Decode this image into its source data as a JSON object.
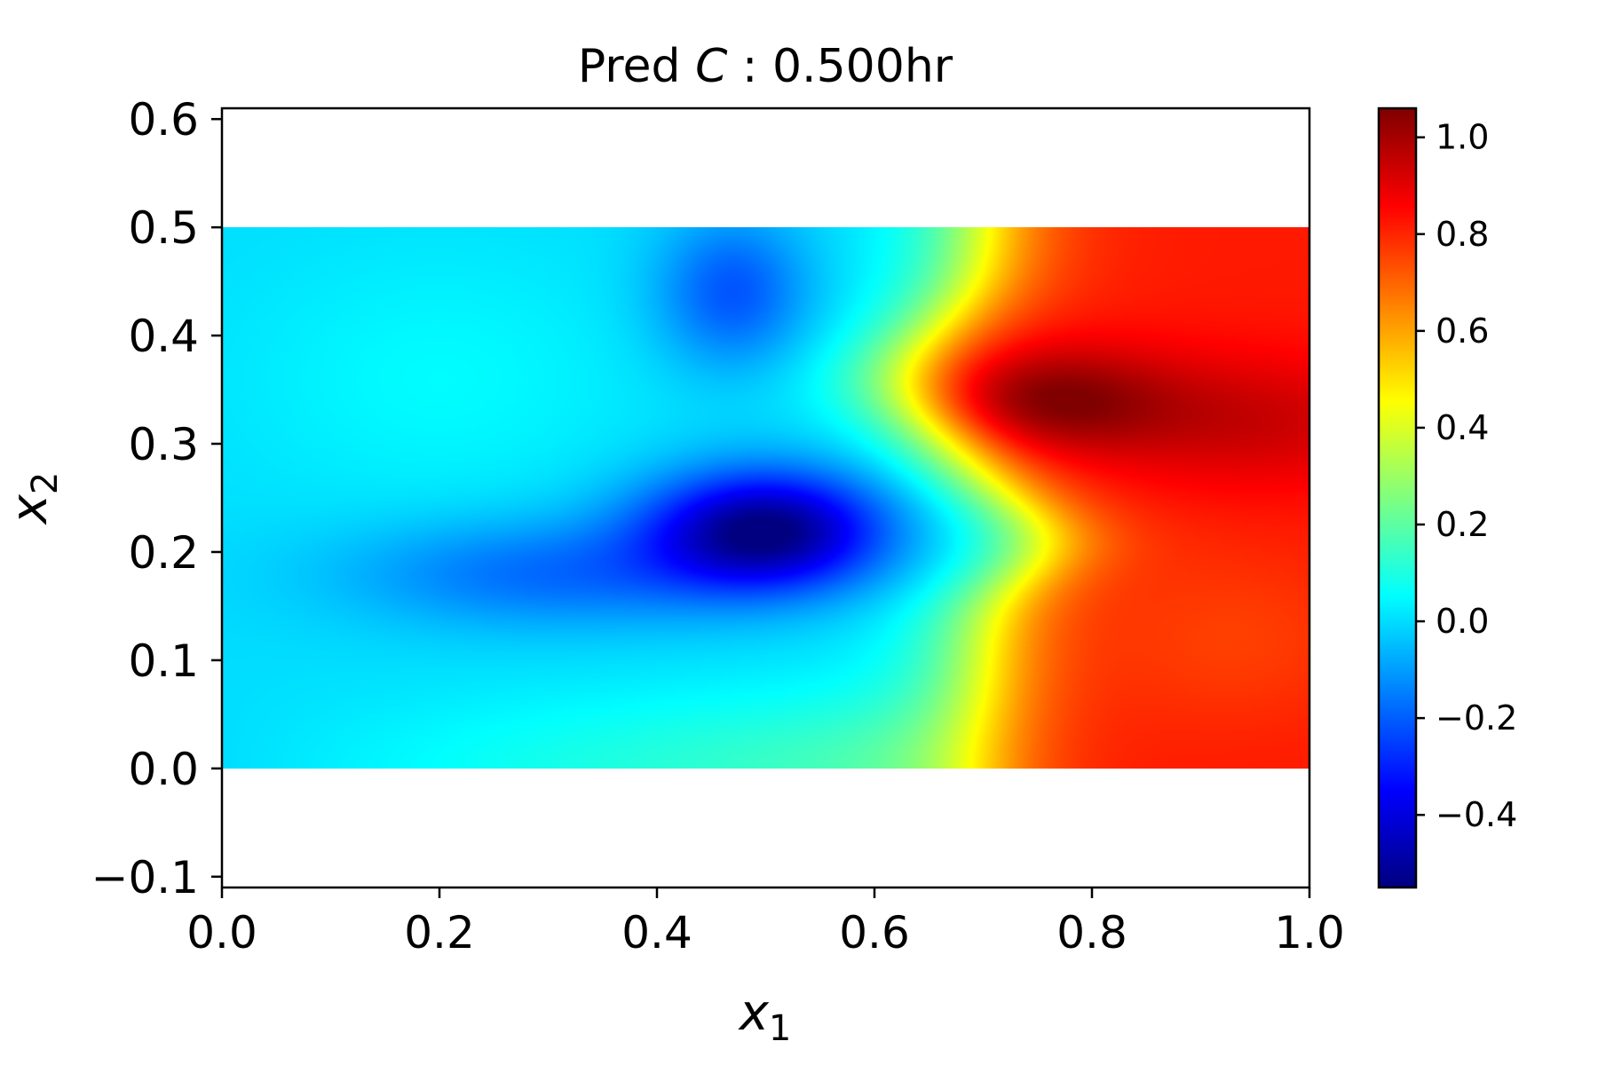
{
  "chart_data": {
    "type": "heatmap",
    "title": "Pred C :  0.500hr",
    "title_parts": {
      "prefix": "Pred ",
      "symbol": "C",
      "suffix": " :  0.500hr"
    },
    "xlabel": {
      "base": "x",
      "sub": "1"
    },
    "ylabel": {
      "base": "x",
      "sub": "2"
    },
    "xlim": [
      0.0,
      1.0
    ],
    "ylim": [
      -0.11,
      0.61
    ],
    "x_ticks": [
      0.0,
      0.2,
      0.4,
      0.6,
      0.8,
      1.0
    ],
    "x_tick_labels": [
      "0.0",
      "0.2",
      "0.4",
      "0.6",
      "0.8",
      "1.0"
    ],
    "y_ticks": [
      -0.1,
      0.0,
      0.1,
      0.2,
      0.3,
      0.4,
      0.5,
      0.6
    ],
    "y_tick_labels": [
      "−0.1",
      "0.0",
      "0.1",
      "0.2",
      "0.3",
      "0.4",
      "0.5",
      "0.6"
    ],
    "domain": {
      "x": [
        0.0,
        1.0
      ],
      "y": [
        0.0,
        0.5
      ]
    },
    "colormap": "jet",
    "colorbar": {
      "range": [
        -0.55,
        1.06
      ],
      "ticks": [
        -0.4,
        -0.2,
        0.0,
        0.2,
        0.4,
        0.6,
        0.8,
        1.0
      ],
      "tick_labels": [
        "−0.4",
        "−0.2",
        "0.0",
        "0.2",
        "0.4",
        "0.6",
        "0.8",
        "1.0"
      ]
    },
    "field_features": [
      {
        "x": 0.49,
        "y": 0.22,
        "value": -0.55,
        "note": "minimum"
      },
      {
        "x": 0.73,
        "y": 0.34,
        "value": 1.06,
        "note": "maximum"
      }
    ],
    "grid": false
  }
}
